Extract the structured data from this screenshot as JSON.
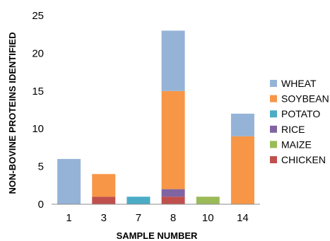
{
  "chart_data": {
    "type": "bar",
    "stacked": true,
    "title": "",
    "xlabel": "SAMPLE NUMBER",
    "ylabel": "NON-BOVINE PROTEINS IDENTIFIED",
    "categories": [
      "1",
      "3",
      "7",
      "8",
      "10",
      "14"
    ],
    "ylim": [
      0,
      25
    ],
    "yticks": [
      0,
      5,
      10,
      15,
      20,
      25
    ],
    "grid": false,
    "legend_position": "right",
    "series": [
      {
        "name": "CHICKEN",
        "color": "#c0504d",
        "values": [
          0,
          1,
          0,
          1,
          0,
          0
        ]
      },
      {
        "name": "MAIZE",
        "color": "#9bbb59",
        "values": [
          0,
          0,
          0,
          0,
          1,
          0
        ]
      },
      {
        "name": "RICE",
        "color": "#8064a2",
        "values": [
          0,
          0,
          0,
          1,
          0,
          0
        ]
      },
      {
        "name": "POTATO",
        "color": "#4bacc6",
        "values": [
          0,
          0,
          1,
          0,
          0,
          0
        ]
      },
      {
        "name": "SOYBEAN",
        "color": "#f79646",
        "values": [
          0,
          3,
          0,
          13,
          0,
          9
        ]
      },
      {
        "name": "WHEAT",
        "color": "#95b3d7",
        "values": [
          6,
          0,
          0,
          8,
          0,
          3
        ]
      }
    ],
    "legend_order": [
      "WHEAT",
      "SOYBEAN",
      "POTATO",
      "RICE",
      "MAIZE",
      "CHICKEN"
    ]
  }
}
